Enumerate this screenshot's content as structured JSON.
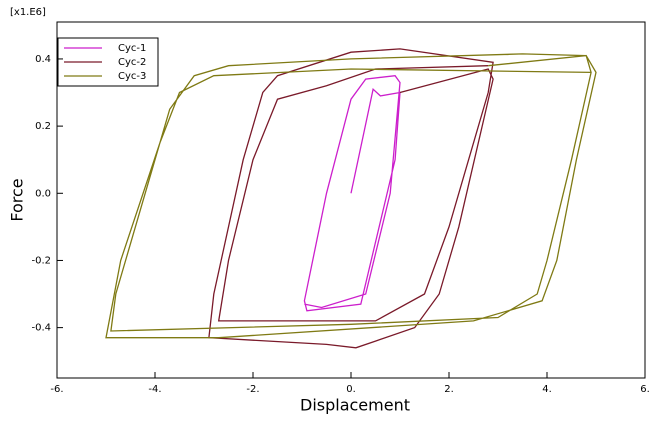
{
  "chart_data": {
    "type": "line",
    "annotation": "[x1.E6]",
    "x_label": "Displacement",
    "y_label": "Force",
    "xlim": [
      -6,
      6
    ],
    "ylim": [
      -0.55,
      0.51
    ],
    "xticks": [
      {
        "value": -6,
        "label": "-6."
      },
      {
        "value": -4,
        "label": "-4."
      },
      {
        "value": -2,
        "label": "-2."
      },
      {
        "value": 0,
        "label": "0."
      },
      {
        "value": 2,
        "label": "2."
      },
      {
        "value": 4,
        "label": "4."
      },
      {
        "value": 6,
        "label": "6."
      }
    ],
    "yticks": [
      -0.4,
      -0.2,
      {
        "value": 0,
        "label": "0.0"
      },
      0.2,
      0.4
    ],
    "legend": "upper left",
    "series": [
      {
        "name": "Cyc-1",
        "color": "#cc1fcc",
        "x": [
          0,
          0.45,
          0.6,
          1.0,
          0.9,
          0.2,
          -0.9,
          -0.95,
          -0.5,
          0,
          0.3,
          0.9,
          1.0,
          0.8,
          0.3,
          -0.6,
          -0.95
        ],
        "values": [
          0,
          0.31,
          0.29,
          0.3,
          0.1,
          -0.33,
          -0.35,
          -0.32,
          0,
          0.28,
          0.34,
          0.35,
          0.33,
          0,
          -0.3,
          -0.34,
          -0.33
        ]
      },
      {
        "name": "Cyc-2",
        "color": "#7a1a2a",
        "x": [
          1.0,
          2.8,
          2.9,
          2.2,
          1.8,
          1.3,
          0.5,
          0.1,
          -0.5,
          -2.9,
          -2.8,
          -2.2,
          -1.8,
          -1.5,
          0,
          1,
          2.9,
          2.8,
          2.0,
          1.5,
          0.5,
          -2.7,
          -2.5,
          -2.0,
          -1.5,
          -0.5,
          0.5,
          2.8
        ],
        "values": [
          0.3,
          0.37,
          0.34,
          -0.1,
          -0.3,
          -0.4,
          -0.44,
          -0.46,
          -0.45,
          -0.43,
          -0.3,
          0.1,
          0.3,
          0.35,
          0.42,
          0.43,
          0.39,
          0.3,
          -0.1,
          -0.3,
          -0.38,
          -0.38,
          -0.2,
          0.1,
          0.28,
          0.32,
          0.37,
          0.38
        ]
      },
      {
        "name": "Cyc-3",
        "color": "#7f7a14",
        "x": [
          2.8,
          4.8,
          4.9,
          4.5,
          4,
          3.8,
          3,
          0,
          -4.9,
          -4.8,
          -4,
          -3.7,
          -3.2,
          -2.5,
          0,
          3.5,
          4.8,
          5.0,
          4.6,
          4.2,
          3.9,
          2.5,
          -2.7,
          -5.0,
          -4.7,
          -3.9,
          -3.5,
          -2.8,
          0,
          4.9
        ],
        "values": [
          0.38,
          0.41,
          0.36,
          0.1,
          -0.2,
          -0.3,
          -0.37,
          -0.39,
          -0.41,
          -0.3,
          0.1,
          0.25,
          0.35,
          0.38,
          0.4,
          0.415,
          0.41,
          0.36,
          0.1,
          -0.2,
          -0.32,
          -0.38,
          -0.43,
          -0.43,
          -0.2,
          0.15,
          0.3,
          0.35,
          0.37,
          0.36
        ]
      }
    ]
  }
}
